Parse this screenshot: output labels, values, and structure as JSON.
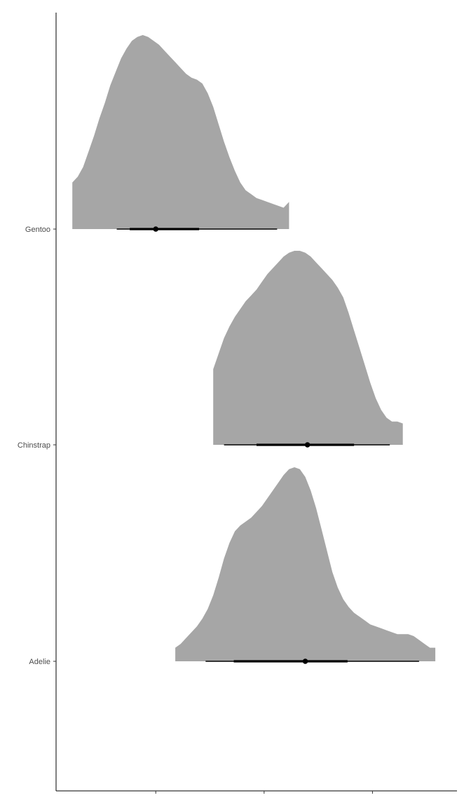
{
  "chart_data": {
    "type": "halfeye",
    "title": "",
    "xlabel": "",
    "ylabel": "",
    "categories": [
      "Gentoo",
      "Chinstrap",
      "Adelie"
    ],
    "xlim": [
      -0.45,
      3.25
    ],
    "x_ticks_unlabeled": [
      0.47,
      1.47,
      2.47
    ],
    "grid": false,
    "legend": "none",
    "fill_color": "#a6a6a6",
    "interval_color": "#000000",
    "series": [
      {
        "category": "Gentoo",
        "point": 0.47,
        "interval_66": [
          0.23,
          0.87
        ],
        "interval_95": [
          0.11,
          1.59
        ],
        "density_x": [
          -0.3,
          -0.25,
          -0.2,
          -0.15,
          -0.1,
          -0.05,
          0.0,
          0.05,
          0.1,
          0.15,
          0.2,
          0.25,
          0.3,
          0.35,
          0.4,
          0.45,
          0.5,
          0.55,
          0.6,
          0.65,
          0.7,
          0.75,
          0.8,
          0.85,
          0.9,
          0.95,
          1.0,
          1.05,
          1.1,
          1.15,
          1.2,
          1.25,
          1.3,
          1.35,
          1.4,
          1.45,
          1.5,
          1.55,
          1.6,
          1.65,
          1.7
        ],
        "density_y": [
          0.24,
          0.27,
          0.32,
          0.4,
          0.48,
          0.57,
          0.65,
          0.74,
          0.81,
          0.88,
          0.93,
          0.97,
          0.99,
          1.0,
          0.99,
          0.97,
          0.95,
          0.92,
          0.89,
          0.86,
          0.83,
          0.8,
          0.78,
          0.77,
          0.75,
          0.7,
          0.63,
          0.54,
          0.45,
          0.37,
          0.3,
          0.24,
          0.2,
          0.18,
          0.16,
          0.15,
          0.14,
          0.13,
          0.12,
          0.11,
          0.14
        ]
      },
      {
        "category": "Chinstrap",
        "point": 1.87,
        "interval_66": [
          1.4,
          2.3
        ],
        "interval_95": [
          1.1,
          2.63
        ],
        "density_x": [
          1.0,
          1.05,
          1.1,
          1.15,
          1.2,
          1.25,
          1.3,
          1.35,
          1.4,
          1.45,
          1.5,
          1.55,
          1.6,
          1.65,
          1.7,
          1.75,
          1.8,
          1.85,
          1.9,
          1.95,
          2.0,
          2.05,
          2.1,
          2.15,
          2.2,
          2.25,
          2.3,
          2.35,
          2.4,
          2.45,
          2.5,
          2.55,
          2.6,
          2.65,
          2.7,
          2.75
        ],
        "density_y": [
          0.39,
          0.47,
          0.55,
          0.61,
          0.66,
          0.7,
          0.74,
          0.77,
          0.8,
          0.84,
          0.88,
          0.91,
          0.94,
          0.97,
          0.99,
          1.0,
          1.0,
          0.99,
          0.97,
          0.94,
          0.91,
          0.88,
          0.85,
          0.81,
          0.76,
          0.68,
          0.59,
          0.5,
          0.41,
          0.32,
          0.24,
          0.18,
          0.14,
          0.12,
          0.12,
          0.11
        ]
      },
      {
        "category": "Adelie",
        "point": 1.85,
        "interval_66": [
          1.19,
          2.24
        ],
        "interval_95": [
          0.93,
          2.9
        ],
        "density_x": [
          0.65,
          0.7,
          0.75,
          0.8,
          0.85,
          0.9,
          0.95,
          1.0,
          1.05,
          1.1,
          1.15,
          1.2,
          1.25,
          1.3,
          1.35,
          1.4,
          1.45,
          1.5,
          1.55,
          1.6,
          1.65,
          1.7,
          1.75,
          1.8,
          1.85,
          1.9,
          1.95,
          2.0,
          2.05,
          2.1,
          2.15,
          2.2,
          2.25,
          2.3,
          2.35,
          2.4,
          2.45,
          2.5,
          2.55,
          2.6,
          2.65,
          2.7,
          2.75,
          2.8,
          2.85,
          2.9,
          2.95,
          3.0,
          3.05
        ],
        "density_y": [
          0.07,
          0.09,
          0.12,
          0.15,
          0.18,
          0.22,
          0.27,
          0.34,
          0.43,
          0.53,
          0.61,
          0.67,
          0.7,
          0.72,
          0.74,
          0.77,
          0.8,
          0.84,
          0.88,
          0.92,
          0.96,
          0.99,
          1.0,
          0.99,
          0.95,
          0.88,
          0.79,
          0.68,
          0.57,
          0.46,
          0.38,
          0.32,
          0.28,
          0.25,
          0.23,
          0.21,
          0.19,
          0.18,
          0.17,
          0.16,
          0.15,
          0.14,
          0.14,
          0.14,
          0.13,
          0.11,
          0.09,
          0.07,
          0.07
        ]
      }
    ]
  }
}
